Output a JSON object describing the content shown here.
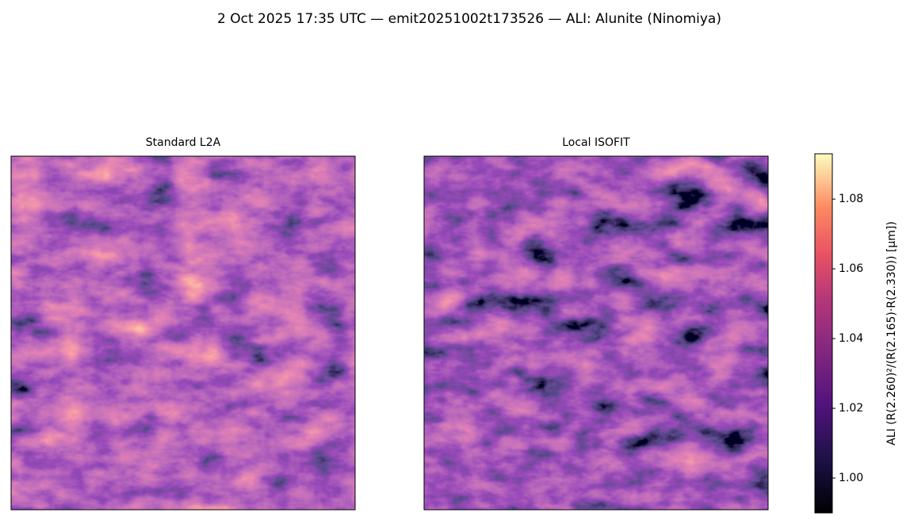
{
  "chart_data": {
    "type": "image",
    "title": "2 Oct 2025 17:35 UTC — emit20251002t173526 — ALI: Alunite (Ninomiya)",
    "panels": [
      {
        "title": "Standard L2A"
      },
      {
        "title": "Local ISOFIT"
      }
    ],
    "colormap": "magma",
    "colorbar_label": "ALI  (R(2.260)²/(R(2.165)·R(2.330))  [µm])",
    "clim": [
      0.99,
      1.093
    ],
    "cticks": [
      {
        "value": 1,
        "label": "1.00"
      },
      {
        "value": 1.02,
        "label": "1.02"
      },
      {
        "value": 1.04,
        "label": "1.04"
      },
      {
        "value": 1.06,
        "label": "1.06"
      },
      {
        "value": 1.08,
        "label": "1.08"
      }
    ]
  }
}
